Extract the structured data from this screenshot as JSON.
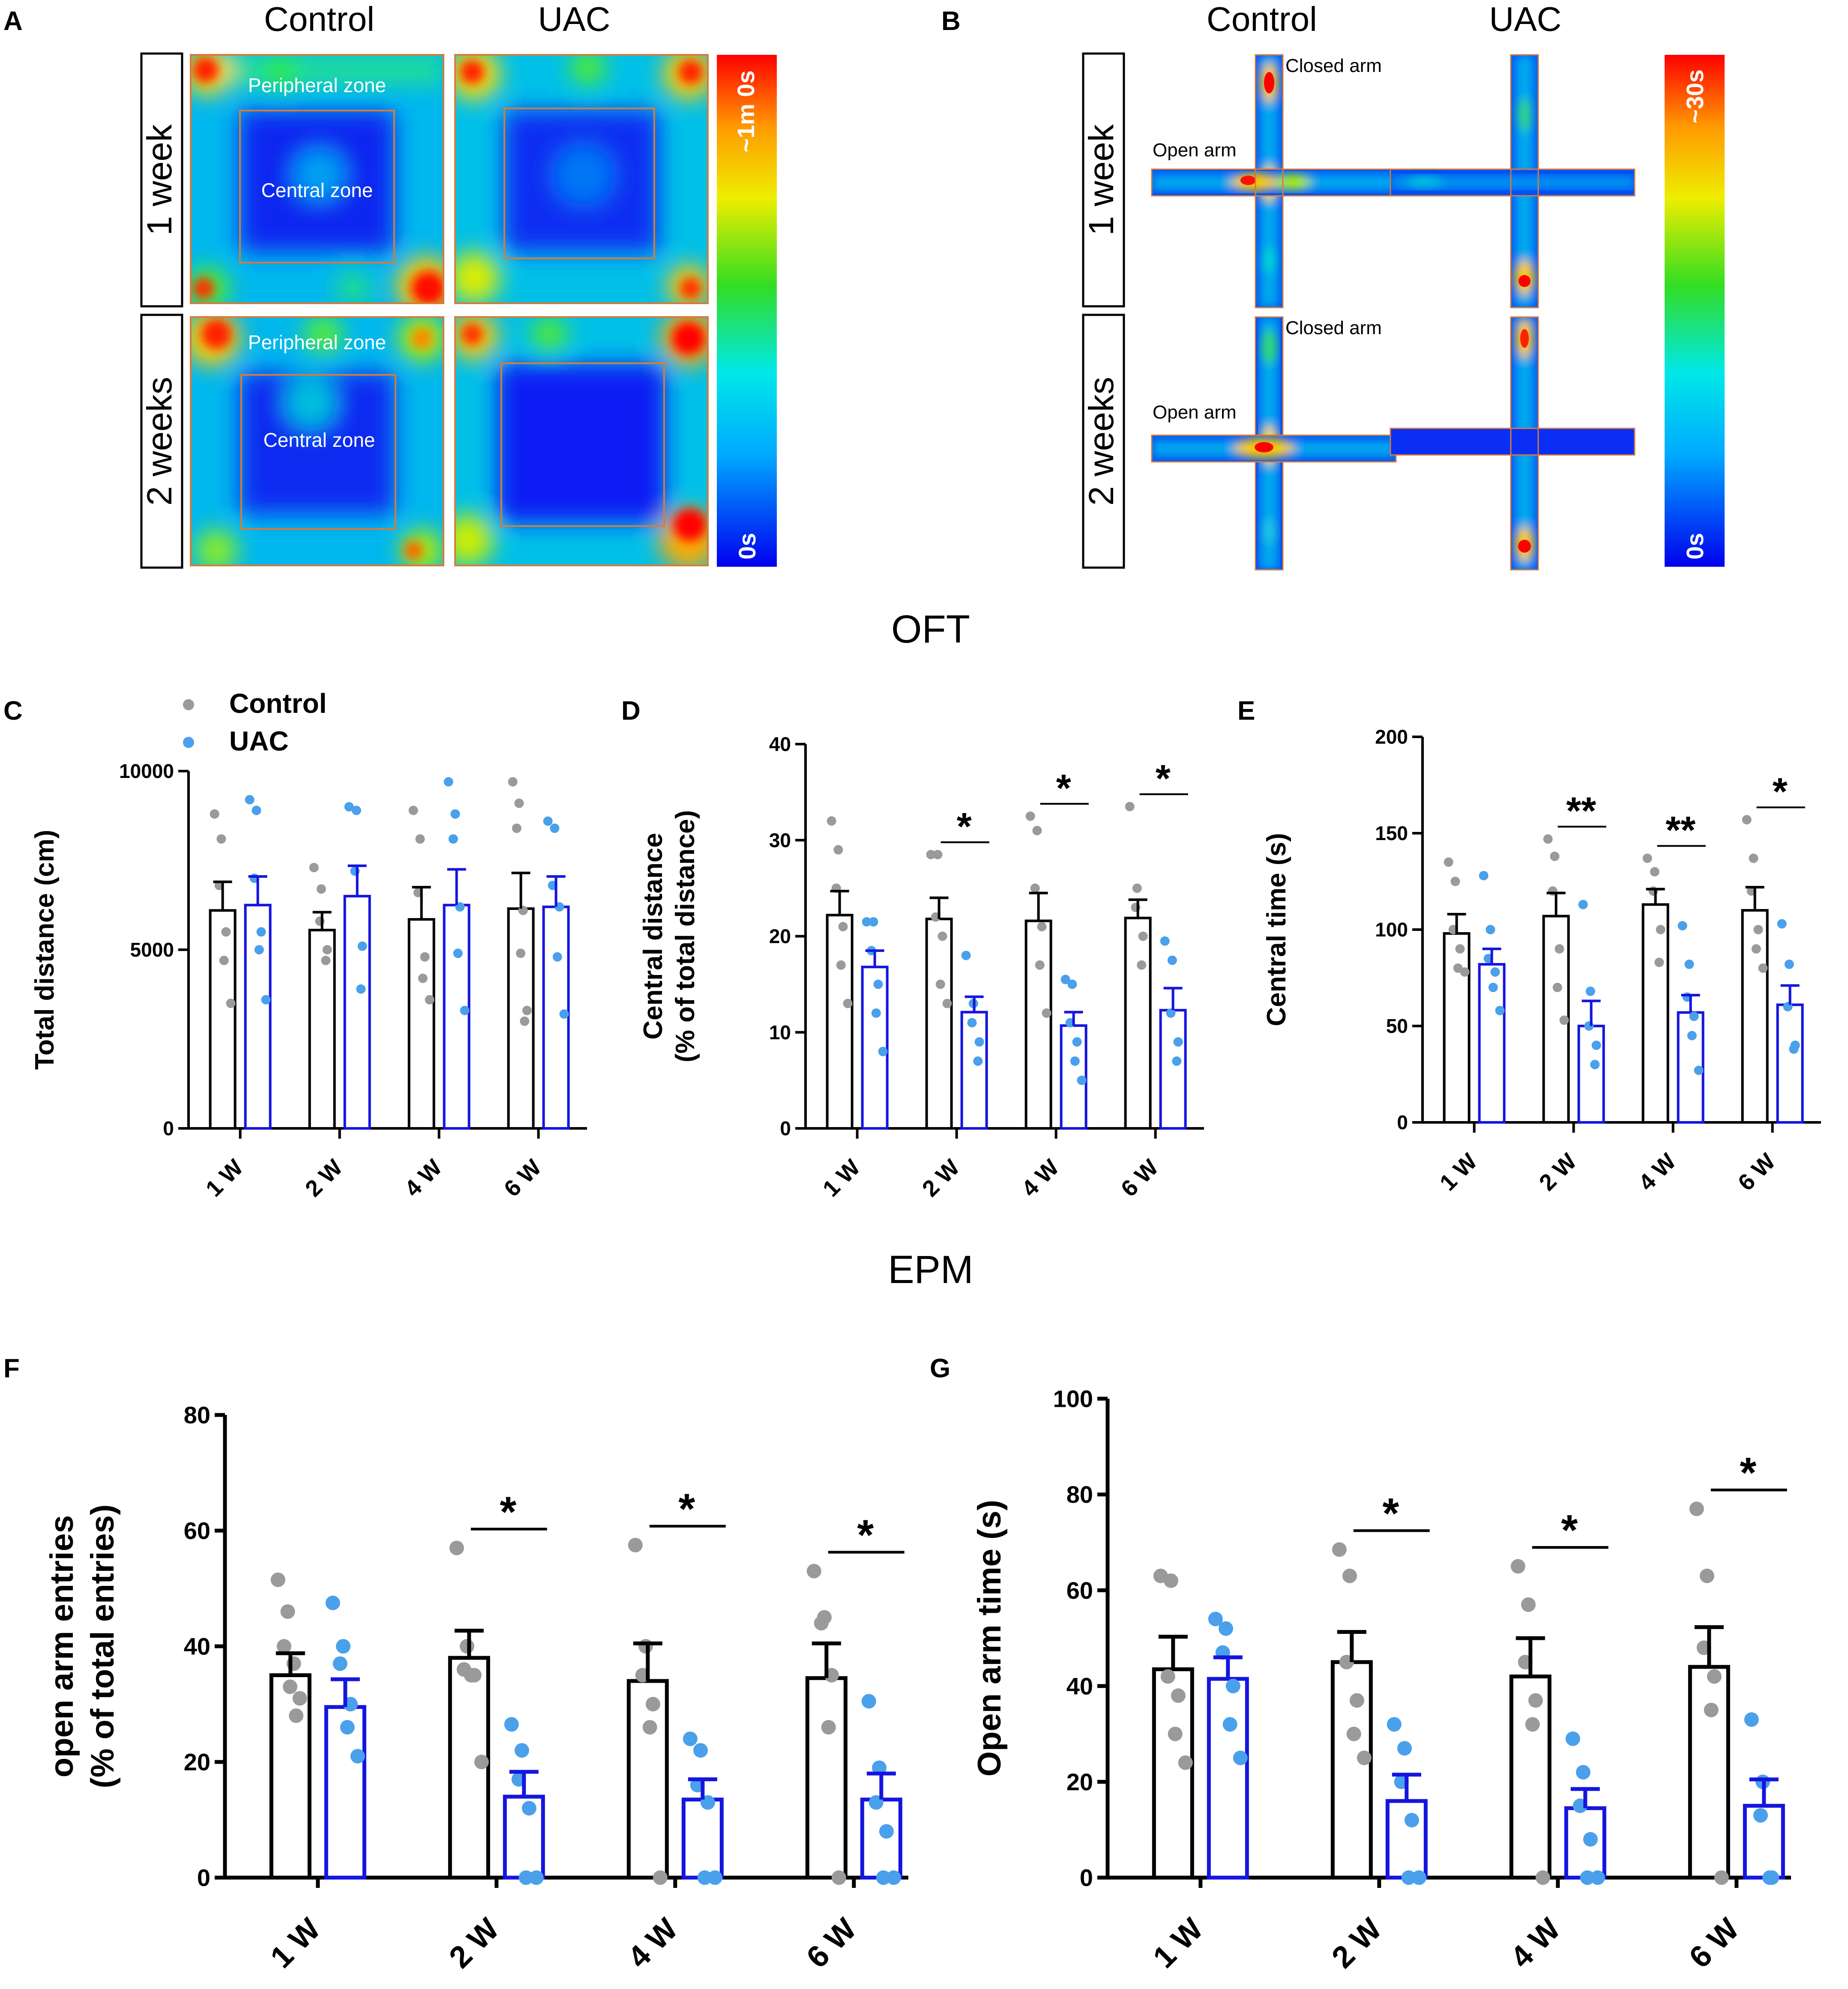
{
  "figure": {
    "panel_labels": [
      "A",
      "B",
      "C",
      "D",
      "E",
      "F",
      "G"
    ],
    "section_titles": {
      "oft": "OFT",
      "epm": "EPM"
    }
  },
  "heatmaps": {
    "oft": {
      "col_headers": [
        "Control",
        "UAC"
      ],
      "row_labels": [
        "1 week",
        "2 weeks"
      ],
      "zone_labels": {
        "peripheral": "Peripheral zone",
        "central": "Central zone"
      },
      "scale": {
        "max": "~1m 0s",
        "min": "0s"
      }
    },
    "epm": {
      "col_headers": [
        "Control",
        "UAC"
      ],
      "row_labels": [
        "1 week",
        "2 weeks"
      ],
      "arm_labels": {
        "closed": "Closed arm",
        "open": "Open arm"
      },
      "scale": {
        "max": "~30s",
        "min": "0s"
      }
    }
  },
  "legend": {
    "control": "Control",
    "uac": "UAC"
  },
  "colors": {
    "control_bar": "#000000",
    "uac_bar": "#1515e0",
    "control_dot": "#9a9a9a",
    "uac_dot": "#4aa0ea"
  },
  "chart_data": [
    {
      "id": "C",
      "type": "bar",
      "ylabel": "Total distance (cm)",
      "ylim": [
        0,
        10000
      ],
      "ticks": [
        "0",
        "5000",
        "10000"
      ],
      "tick_values": [
        0,
        5000,
        10000
      ],
      "categories": [
        "1 W",
        "2 W",
        "4 W",
        "6 W"
      ],
      "series": [
        {
          "name": "Control",
          "values": [
            6100,
            5550,
            5850,
            6150
          ],
          "sem": [
            800,
            500,
            900,
            1000
          ],
          "points": [
            [
              8800,
              8100,
              6800,
              5500,
              4700,
              3500
            ],
            [
              7300,
              6700,
              5800,
              5000,
              4700
            ],
            [
              8900,
              8100,
              6600,
              4800,
              4200,
              3600
            ],
            [
              9700,
              9100,
              8400,
              6100,
              4900,
              3300,
              3000
            ]
          ]
        },
        {
          "name": "UAC",
          "values": [
            6250,
            6500,
            6250,
            6200
          ],
          "sem": [
            800,
            850,
            1000,
            850
          ],
          "points": [
            [
              9200,
              8900,
              7000,
              5500,
              5000,
              3600
            ],
            [
              9000,
              8900,
              7200,
              5100,
              3900
            ],
            [
              9700,
              8800,
              8100,
              6200,
              4900,
              3300
            ],
            [
              8600,
              8400,
              6800,
              6200,
              4800,
              3200
            ]
          ]
        }
      ],
      "sig": [
        "",
        "",
        "",
        ""
      ]
    },
    {
      "id": "D",
      "type": "bar",
      "ylabel": [
        "Central distance",
        "(% of total distance)"
      ],
      "ylim": [
        0,
        40
      ],
      "ticks": [
        "0",
        "10",
        "20",
        "30",
        "40"
      ],
      "tick_values": [
        0,
        10,
        20,
        30,
        40
      ],
      "categories": [
        "1 W",
        "2 W",
        "4 W",
        "6 W"
      ],
      "series": [
        {
          "name": "Control",
          "values": [
            22.2,
            21.8,
            21.6,
            21.9
          ],
          "sem": [
            2.5,
            2.2,
            2.9,
            1.9
          ],
          "points": [
            [
              32,
              29,
              25,
              21,
              17,
              13
            ],
            [
              28.5,
              28.5,
              22,
              20,
              15,
              13
            ],
            [
              32.5,
              31,
              25,
              21,
              17,
              12
            ],
            [
              33.5,
              25,
              23,
              20,
              17
            ]
          ]
        },
        {
          "name": "UAC",
          "values": [
            16.8,
            12.1,
            10.7,
            12.3
          ],
          "sem": [
            1.7,
            1.6,
            1.4,
            2.3
          ],
          "points": [
            [
              21.5,
              21.5,
              18.5,
              15,
              12,
              8
            ],
            [
              18,
              13,
              11,
              9,
              7
            ],
            [
              15.5,
              15,
              11,
              9,
              7,
              5
            ],
            [
              19.5,
              17.5,
              12,
              9,
              7
            ]
          ]
        }
      ],
      "sig": [
        "",
        "*",
        "*",
        "*"
      ]
    },
    {
      "id": "E",
      "type": "bar",
      "ylabel": "Central time (s)",
      "ylim": [
        0,
        200
      ],
      "ticks": [
        "0",
        "50",
        "100",
        "150",
        "200"
      ],
      "tick_values": [
        0,
        50,
        100,
        150,
        200
      ],
      "categories": [
        "1 W",
        "2 W",
        "4 W",
        "6 W"
      ],
      "series": [
        {
          "name": "Control",
          "values": [
            98,
            107,
            113,
            110
          ],
          "sem": [
            10,
            12,
            8,
            12
          ],
          "points": [
            [
              135,
              125,
              100,
              90,
              80,
              78
            ],
            [
              147,
              138,
              120,
              90,
              70,
              53
            ],
            [
              137,
              130,
              120,
              100,
              83
            ],
            [
              157,
              137,
              120,
              100,
              90,
              80
            ]
          ]
        },
        {
          "name": "UAC",
          "values": [
            82,
            50,
            57,
            61
          ],
          "sem": [
            8,
            13,
            9,
            10
          ],
          "points": [
            [
              128,
              100,
              85,
              78,
              70,
              58
            ],
            [
              113,
              68,
              50,
              40,
              30
            ],
            [
              102,
              82,
              65,
              55,
              45,
              27
            ],
            [
              103,
              82,
              60,
              40,
              38
            ]
          ]
        }
      ],
      "sig": [
        "",
        "**",
        "**",
        "*"
      ]
    },
    {
      "id": "F",
      "type": "bar",
      "ylabel": [
        "open arm entries",
        "(% of total entries)"
      ],
      "ylim": [
        0,
        80
      ],
      "ticks": [
        "0",
        "20",
        "40",
        "60",
        "80"
      ],
      "tick_values": [
        0,
        20,
        40,
        60,
        80
      ],
      "categories": [
        "1 W",
        "2 W",
        "4 W",
        "6 W"
      ],
      "series": [
        {
          "name": "Control",
          "values": [
            35,
            38,
            34,
            34.5
          ],
          "sem": [
            3.8,
            4.7,
            6.5,
            6
          ],
          "points": [
            [
              51.5,
              46,
              40,
              37,
              33,
              31,
              28
            ],
            [
              57,
              40,
              36,
              35,
              35,
              20
            ],
            [
              57.5,
              40,
              35,
              30,
              26,
              0
            ],
            [
              53,
              45,
              44,
              35,
              26,
              0
            ]
          ]
        },
        {
          "name": "UAC",
          "values": [
            29.5,
            14,
            13.5,
            13.5
          ],
          "sem": [
            4.8,
            4.3,
            3.5,
            4.5
          ],
          "points": [
            [
              47.5,
              40,
              37,
              30,
              26,
              21
            ],
            [
              26.5,
              22,
              17,
              12,
              0,
              0
            ],
            [
              24,
              22,
              16,
              13,
              0,
              0
            ],
            [
              30.5,
              19,
              13,
              8,
              0,
              0
            ]
          ]
        }
      ],
      "sig": [
        "",
        "*",
        "*",
        "*"
      ]
    },
    {
      "id": "G",
      "type": "bar",
      "ylabel": "Open arm time (s)",
      "ylim": [
        0,
        100
      ],
      "ticks": [
        "0",
        "20",
        "40",
        "60",
        "80",
        "100"
      ],
      "tick_values": [
        0,
        20,
        40,
        60,
        80,
        100
      ],
      "categories": [
        "1 W",
        "2 W",
        "4 W",
        "6 W"
      ],
      "series": [
        {
          "name": "Control",
          "values": [
            43.5,
            45,
            42,
            44
          ],
          "sem": [
            6.8,
            6.3,
            8,
            8.3
          ],
          "points": [
            [
              63,
              62,
              42,
              38,
              30,
              24
            ],
            [
              68.5,
              63,
              45,
              37,
              30,
              25
            ],
            [
              65,
              57,
              45,
              37,
              32,
              0
            ],
            [
              77,
              63,
              48,
              42,
              35,
              0
            ]
          ]
        },
        {
          "name": "UAC",
          "values": [
            41.5,
            16,
            14.5,
            15
          ],
          "sem": [
            4.5,
            5.5,
            4,
            5.5
          ],
          "points": [
            [
              54,
              52,
              47,
              40,
              32,
              25
            ],
            [
              32,
              27,
              20,
              12,
              0,
              0
            ],
            [
              29,
              22,
              15,
              8,
              0,
              0
            ],
            [
              33,
              20,
              13,
              0,
              0
            ]
          ]
        }
      ],
      "sig": [
        "",
        "*",
        "*",
        "*"
      ]
    }
  ]
}
